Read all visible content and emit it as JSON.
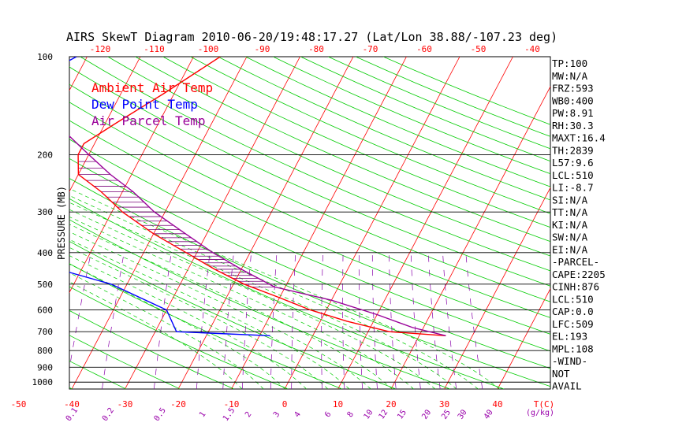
{
  "chart_data": {
    "type": "skew-t",
    "title": "AIRS SkewT Diagram 2010-06-20/19:48:17.27 (Lat/Lon 38.88/-107.23 deg)",
    "ylabel": "PRESSURE (MB)",
    "pressure_ticks": [
      "100",
      "200",
      "300",
      "400",
      "500",
      "600",
      "700",
      "800",
      "900",
      "1000"
    ],
    "pressure_values": [
      100,
      200,
      300,
      400,
      500,
      600,
      700,
      800,
      900,
      1000
    ],
    "temp_top_ticks": [
      "-120",
      "-110",
      "-100",
      "-90",
      "-80",
      "-70",
      "-60",
      "-50",
      "-40"
    ],
    "temp_bottom_ticks": [
      "-50",
      "-40",
      "-30",
      "-20",
      "-10",
      "0",
      "10",
      "20",
      "30",
      "40"
    ],
    "temp_axis_label": "T(C)",
    "mixing_ratio_labels": [
      "0.1",
      "0.2",
      "0.5",
      "1",
      "1.5",
      "2",
      "3",
      "4",
      "6",
      "8",
      "10",
      "12",
      "15",
      "20",
      "25",
      "30",
      "40"
    ],
    "mixing_ratio_values": [
      0.1,
      0.2,
      0.5,
      1,
      1.5,
      2,
      3,
      4,
      6,
      8,
      10,
      12,
      15,
      20,
      25,
      30,
      40
    ],
    "mixing_axis_label": "(g/kg)",
    "legend": [
      {
        "label": "Ambient Air Temp",
        "color": "#ff0000"
      },
      {
        "label": "Dew Point Temp",
        "color": "#0000ff"
      },
      {
        "label": "Air Parcel Temp",
        "color": "#990099"
      }
    ],
    "series": [
      {
        "name": "Ambient Air Temp",
        "color": "#ff0000",
        "points": [
          [
            100,
            -45
          ],
          [
            130,
            -52
          ],
          [
            160,
            -58
          ],
          [
            185,
            -62
          ],
          [
            200,
            -62
          ],
          [
            230,
            -60
          ],
          [
            260,
            -54
          ],
          [
            300,
            -48
          ],
          [
            350,
            -40
          ],
          [
            400,
            -32
          ],
          [
            450,
            -25
          ],
          [
            500,
            -18
          ],
          [
            550,
            -10
          ],
          [
            600,
            -3
          ],
          [
            650,
            5
          ],
          [
            700,
            14
          ],
          [
            720,
            25
          ]
        ]
      },
      {
        "name": "Dew Point Temp",
        "color": "#0000ff",
        "points": [
          [
            100,
            -72
          ],
          [
            140,
            -84
          ],
          [
            200,
            -100
          ],
          [
            300,
            -92
          ],
          [
            400,
            -67
          ],
          [
            500,
            -43
          ],
          [
            600,
            -30
          ],
          [
            700,
            -26
          ],
          [
            720,
            -8
          ]
        ]
      },
      {
        "name": "Air Parcel Temp",
        "color": "#990099",
        "points": [
          [
            100,
            -82
          ],
          [
            150,
            -72
          ],
          [
            200,
            -60
          ],
          [
            230,
            -54
          ],
          [
            260,
            -48
          ],
          [
            300,
            -42
          ],
          [
            350,
            -34
          ],
          [
            400,
            -27
          ],
          [
            450,
            -20
          ],
          [
            510,
            -12
          ],
          [
            560,
            0
          ],
          [
            620,
            10
          ],
          [
            680,
            18
          ],
          [
            720,
            25
          ]
        ]
      }
    ],
    "cape_shading": {
      "from_pressure": 200,
      "to_pressure": 510
    },
    "indices": [
      "TP:100",
      "MW:N/A",
      "FRZ:593",
      "WB0:400",
      "PW:8.91",
      "RH:30.3",
      "MAXT:16.4",
      "TH:2839",
      "L57:9.6",
      "LCL:510",
      "LI:-8.7",
      "SI:N/A",
      "TT:N/A",
      "KI:N/A",
      "SW:N/A",
      "EI:N/A",
      "-PARCEL-",
      "CAPE:2205",
      "CINH:876",
      "LCL:510",
      "CAP:0.0",
      "LFC:509",
      "EL:193",
      "MPL:108",
      "-WIND-",
      "NOT",
      "AVAIL"
    ],
    "colors": {
      "isotherm": "#ff0000",
      "dry_adiabat": "#00cc00",
      "moist_adiabat": "#00cc00",
      "mixing_ratio": "#8800aa",
      "isobar": "#000000"
    }
  }
}
